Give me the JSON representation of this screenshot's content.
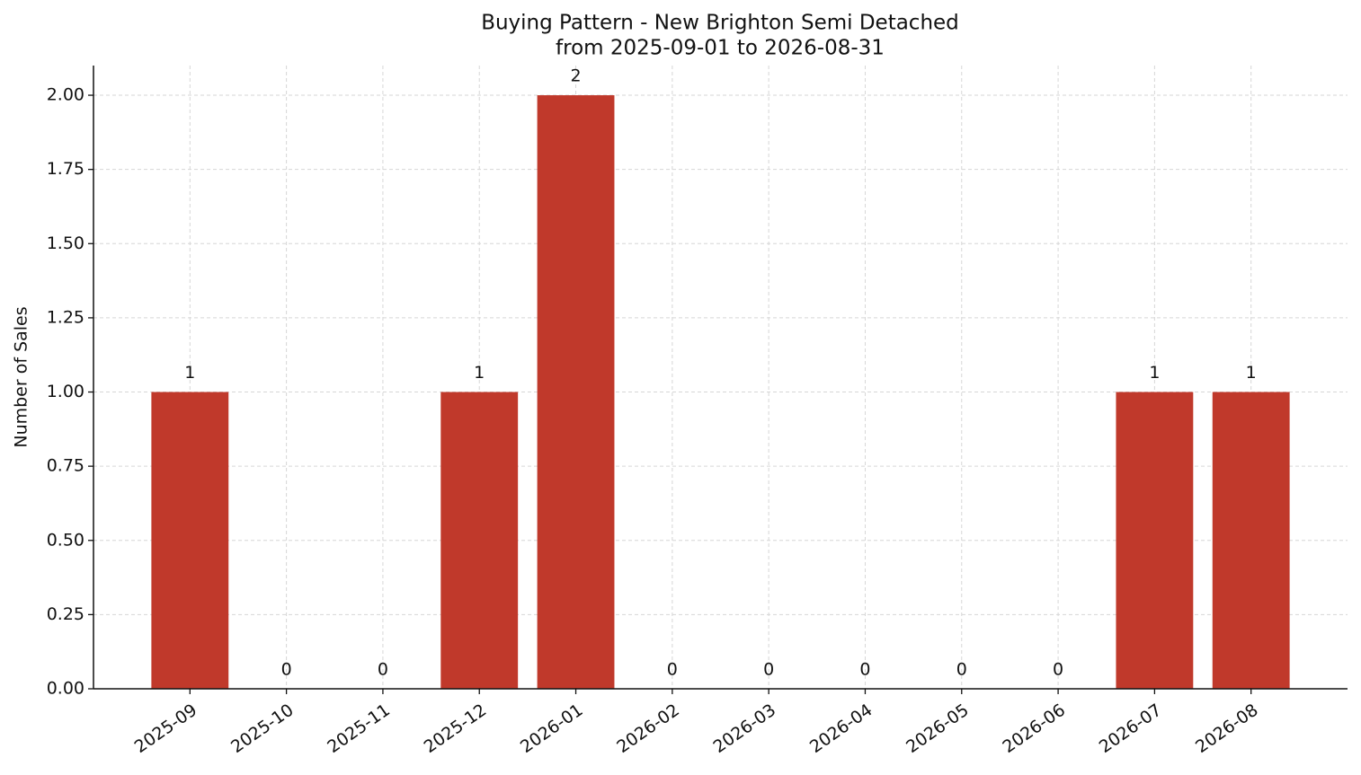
{
  "chart_data": {
    "type": "bar",
    "title": "Buying Pattern - New Brighton Semi Detached",
    "subtitle": "from 2025-09-01 to 2026-08-31",
    "y_label": "Number of Sales",
    "categories": [
      "2025-09",
      "2025-10",
      "2025-11",
      "2025-12",
      "2026-01",
      "2026-02",
      "2026-03",
      "2026-04",
      "2026-05",
      "2026-06",
      "2026-07",
      "2026-08"
    ],
    "values": [
      1,
      0,
      0,
      1,
      2,
      0,
      0,
      0,
      0,
      0,
      1,
      1
    ],
    "color": "#c0392b",
    "ylim": [
      0,
      2.1
    ],
    "yticks": [
      {
        "value": 0,
        "label": "0.00"
      },
      {
        "value": 0.25,
        "label": "0.25"
      },
      {
        "value": 0.5,
        "label": "0.50"
      },
      {
        "value": 0.75,
        "label": "0.75"
      },
      {
        "value": 1,
        "label": "1.00"
      },
      {
        "value": 1.25,
        "label": "1.25"
      },
      {
        "value": 1.5,
        "label": "1.50"
      },
      {
        "value": 1.75,
        "label": "1.75"
      },
      {
        "value": 2,
        "label": "2.00"
      }
    ],
    "grid": true
  }
}
